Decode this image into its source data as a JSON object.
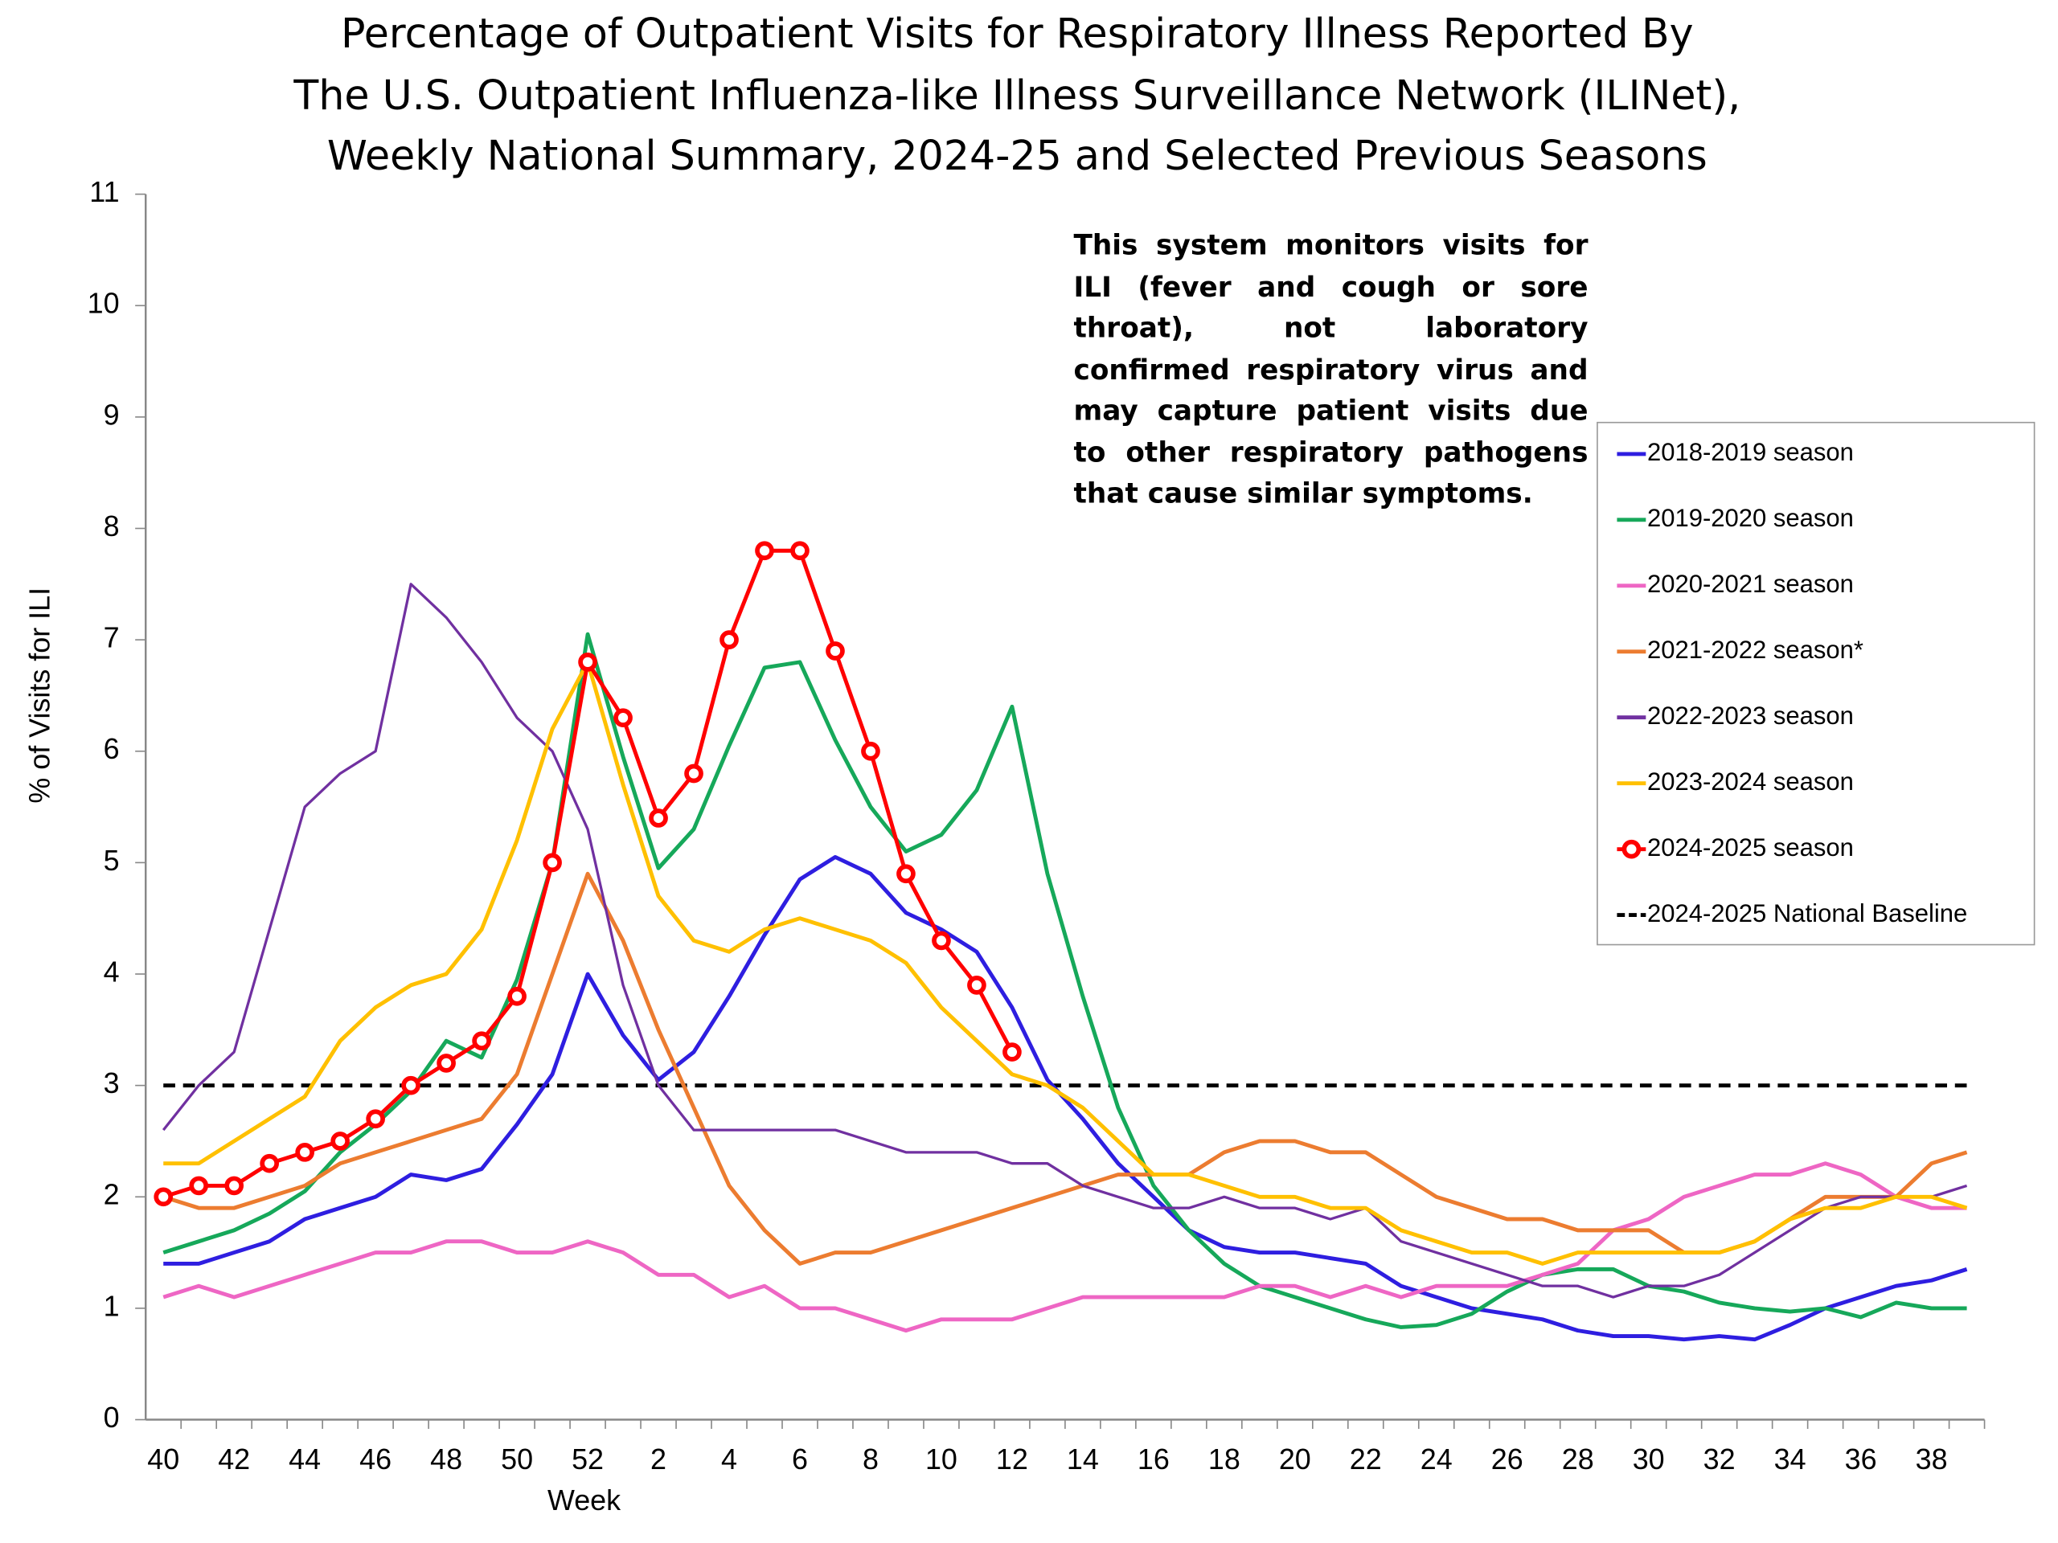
{
  "chart_data": {
    "type": "line",
    "title": [
      "Percentage of Outpatient Visits for Respiratory Illness Reported By",
      "The U.S. Outpatient Influenza-like Illness Surveillance Network (ILINet),",
      "Weekly National Summary, 2024-25 and Selected Previous Seasons"
    ],
    "y_label": "% of Visits for ILI",
    "x_label": "Week",
    "annotation": "This system monitors visits for ILI (fever and cough or sore throat), not laboratory confirmed respiratory virus and may capture patient visits due to other respiratory pathogens that cause similar symptoms.",
    "categories": [
      "40",
      null,
      "42",
      null,
      "44",
      null,
      "46",
      null,
      "48",
      null,
      "50",
      null,
      "52",
      null,
      "2",
      null,
      "4",
      null,
      "6",
      null,
      "8",
      null,
      "10",
      null,
      "12",
      null,
      "14",
      null,
      "16",
      null,
      "18",
      null,
      "20",
      null,
      "22",
      null,
      "24",
      null,
      "26",
      null,
      "28",
      null,
      "30",
      null,
      "32",
      null,
      "34",
      null,
      "36",
      null,
      "38",
      null
    ],
    "ylim": [
      0,
      11
    ],
    "yticks": [
      0,
      1,
      2,
      3,
      4,
      5,
      6,
      7,
      8,
      9,
      10,
      11
    ],
    "series": [
      {
        "name": "2018-2019 season",
        "color": "#2e1ee0",
        "values": [
          1.4,
          1.4,
          1.5,
          1.6,
          1.8,
          1.9,
          2.0,
          2.2,
          2.15,
          2.25,
          2.65,
          3.1,
          4.0,
          3.45,
          3.05,
          3.3,
          3.8,
          4.35,
          4.85,
          5.05,
          4.9,
          4.55,
          4.4,
          4.2,
          3.7,
          3.05,
          2.7,
          2.3,
          2.0,
          1.7,
          1.55,
          1.5,
          1.5,
          1.45,
          1.4,
          1.2,
          1.1,
          1.0,
          0.95,
          0.9,
          0.8,
          0.75,
          0.75,
          0.72,
          0.75,
          0.72,
          0.85,
          1.0,
          1.1,
          1.2,
          1.25,
          1.35
        ]
      },
      {
        "name": "2019-2020 season",
        "color": "#16a85a",
        "values": [
          1.5,
          1.6,
          1.7,
          1.85,
          2.05,
          2.4,
          2.65,
          2.95,
          3.4,
          3.25,
          3.95,
          5.0,
          7.05,
          5.95,
          4.95,
          5.3,
          6.05,
          6.75,
          6.8,
          6.1,
          5.5,
          5.1,
          5.25,
          5.65,
          6.4,
          4.9,
          3.8,
          2.8,
          2.1,
          1.7,
          1.4,
          1.2,
          1.1,
          1.0,
          0.9,
          0.83,
          0.85,
          0.95,
          1.15,
          1.3,
          1.35,
          1.35,
          1.2,
          1.15,
          1.05,
          1.0,
          0.97,
          1.0,
          0.92,
          1.05,
          1.0,
          1.0
        ]
      },
      {
        "name": "2020-2021 season",
        "color": "#ee66c4",
        "values": [
          1.1,
          1.2,
          1.1,
          1.2,
          1.3,
          1.4,
          1.5,
          1.5,
          1.6,
          1.6,
          1.5,
          1.5,
          1.6,
          1.5,
          1.3,
          1.3,
          1.1,
          1.2,
          1.0,
          1.0,
          0.9,
          0.8,
          0.9,
          0.9,
          0.9,
          1.0,
          1.1,
          1.1,
          1.1,
          1.1,
          1.1,
          1.2,
          1.2,
          1.1,
          1.2,
          1.1,
          1.2,
          1.2,
          1.2,
          1.3,
          1.4,
          1.7,
          1.8,
          2.0,
          2.1,
          2.2,
          2.2,
          2.3,
          2.2,
          2.0,
          1.9,
          1.9
        ]
      },
      {
        "name": "2021-2022 season*",
        "color": "#ec7c30",
        "values": [
          2.0,
          1.9,
          1.9,
          2.0,
          2.1,
          2.3,
          2.4,
          2.5,
          2.6,
          2.7,
          3.1,
          4.0,
          4.9,
          4.3,
          3.5,
          2.8,
          2.1,
          1.7,
          1.4,
          1.5,
          1.5,
          1.6,
          1.7,
          1.8,
          1.9,
          2.0,
          2.1,
          2.2,
          2.2,
          2.2,
          2.4,
          2.5,
          2.5,
          2.4,
          2.4,
          2.2,
          2.0,
          1.9,
          1.8,
          1.8,
          1.7,
          1.7,
          1.7,
          1.5,
          1.5,
          1.6,
          1.8,
          2.0,
          2.0,
          2.0,
          2.3,
          2.4
        ]
      },
      {
        "name": "2022-2023 season",
        "color": "#7030a0",
        "values": [
          2.6,
          3.0,
          3.3,
          4.4,
          5.5,
          5.8,
          6.0,
          7.5,
          7.2,
          6.8,
          6.3,
          6.0,
          5.3,
          3.9,
          3.0,
          2.6,
          2.6,
          2.6,
          2.6,
          2.6,
          2.5,
          2.4,
          2.4,
          2.4,
          2.3,
          2.3,
          2.1,
          2.0,
          1.9,
          1.9,
          2.0,
          1.9,
          1.9,
          1.8,
          1.9,
          1.6,
          1.5,
          1.4,
          1.3,
          1.2,
          1.2,
          1.1,
          1.2,
          1.2,
          1.3,
          1.5,
          1.7,
          1.9,
          2.0,
          2.0,
          2.0,
          2.1
        ]
      },
      {
        "name": "2023-2024 season",
        "color": "#ffc000",
        "values": [
          2.3,
          2.3,
          2.5,
          2.7,
          2.9,
          3.4,
          3.7,
          3.9,
          4.0,
          4.4,
          5.2,
          6.2,
          6.8,
          5.7,
          4.7,
          4.3,
          4.2,
          4.4,
          4.5,
          4.4,
          4.3,
          4.1,
          3.7,
          3.4,
          3.1,
          3.0,
          2.8,
          2.5,
          2.2,
          2.2,
          2.1,
          2.0,
          2.0,
          1.9,
          1.9,
          1.7,
          1.6,
          1.5,
          1.5,
          1.4,
          1.5,
          1.5,
          1.5,
          1.5,
          1.5,
          1.6,
          1.8,
          1.9,
          1.9,
          2.0,
          2.0,
          1.9
        ]
      },
      {
        "name": "2024-2025 season",
        "color": "#ff0000",
        "markers": true,
        "values": [
          2.0,
          2.1,
          2.1,
          2.3,
          2.4,
          2.5,
          2.7,
          3.0,
          3.2,
          3.4,
          3.8,
          5.0,
          6.8,
          6.3,
          5.4,
          5.8,
          7.0,
          7.8,
          7.8,
          6.9,
          6.0,
          4.9,
          4.3,
          3.9,
          3.3,
          null,
          null,
          null,
          null,
          null,
          null,
          null,
          null,
          null,
          null,
          null,
          null,
          null,
          null,
          null,
          null,
          null,
          null,
          null,
          null,
          null,
          null,
          null,
          null,
          null,
          null,
          null
        ]
      }
    ],
    "baseline": {
      "name": "2024-2025 National Baseline",
      "value": 3,
      "color": "#000000"
    }
  }
}
